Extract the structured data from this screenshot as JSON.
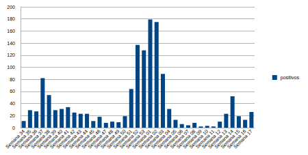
{
  "chart_data": {
    "type": "bar",
    "categories": [
      "Semana 34",
      "Semana 35",
      "Semana 36",
      "Semana 37",
      "Semana 38",
      "Semana 39",
      "Semana 40",
      "Semana 41",
      "Semana 42",
      "Semana 43",
      "Semana 44",
      "Semana 45",
      "Semana 46",
      "Semana 47",
      "Semana 48",
      "Semana 49",
      "Semana 50",
      "Semana 51",
      "Semana 52",
      "Semana 53",
      "Semana 01",
      "Semana 02",
      "Semana 03",
      "Semana 04",
      "Semana 05",
      "Semana 06",
      "Semana 07",
      "Semana 08",
      "Semana 09",
      "Semana 10",
      "Semana 11",
      "Semana 12",
      "Semana 13",
      "Semana 14",
      "Semana 15",
      "Semana 16",
      "Semana 17"
    ],
    "series": [
      {
        "name": "positivos",
        "color": "#004586",
        "values": [
          11,
          29,
          27,
          82,
          54,
          29,
          31,
          34,
          25,
          23,
          23,
          11,
          18,
          8,
          10,
          9,
          19,
          64,
          137,
          128,
          179,
          175,
          89,
          31,
          13,
          6,
          4,
          8,
          2,
          3,
          2,
          10,
          23,
          52,
          19,
          13,
          26
        ]
      }
    ],
    "ylim": [
      0,
      200
    ],
    "yticks": [
      0,
      20,
      40,
      60,
      80,
      100,
      120,
      140,
      160,
      180,
      200
    ],
    "grid": true,
    "legend": "right"
  }
}
